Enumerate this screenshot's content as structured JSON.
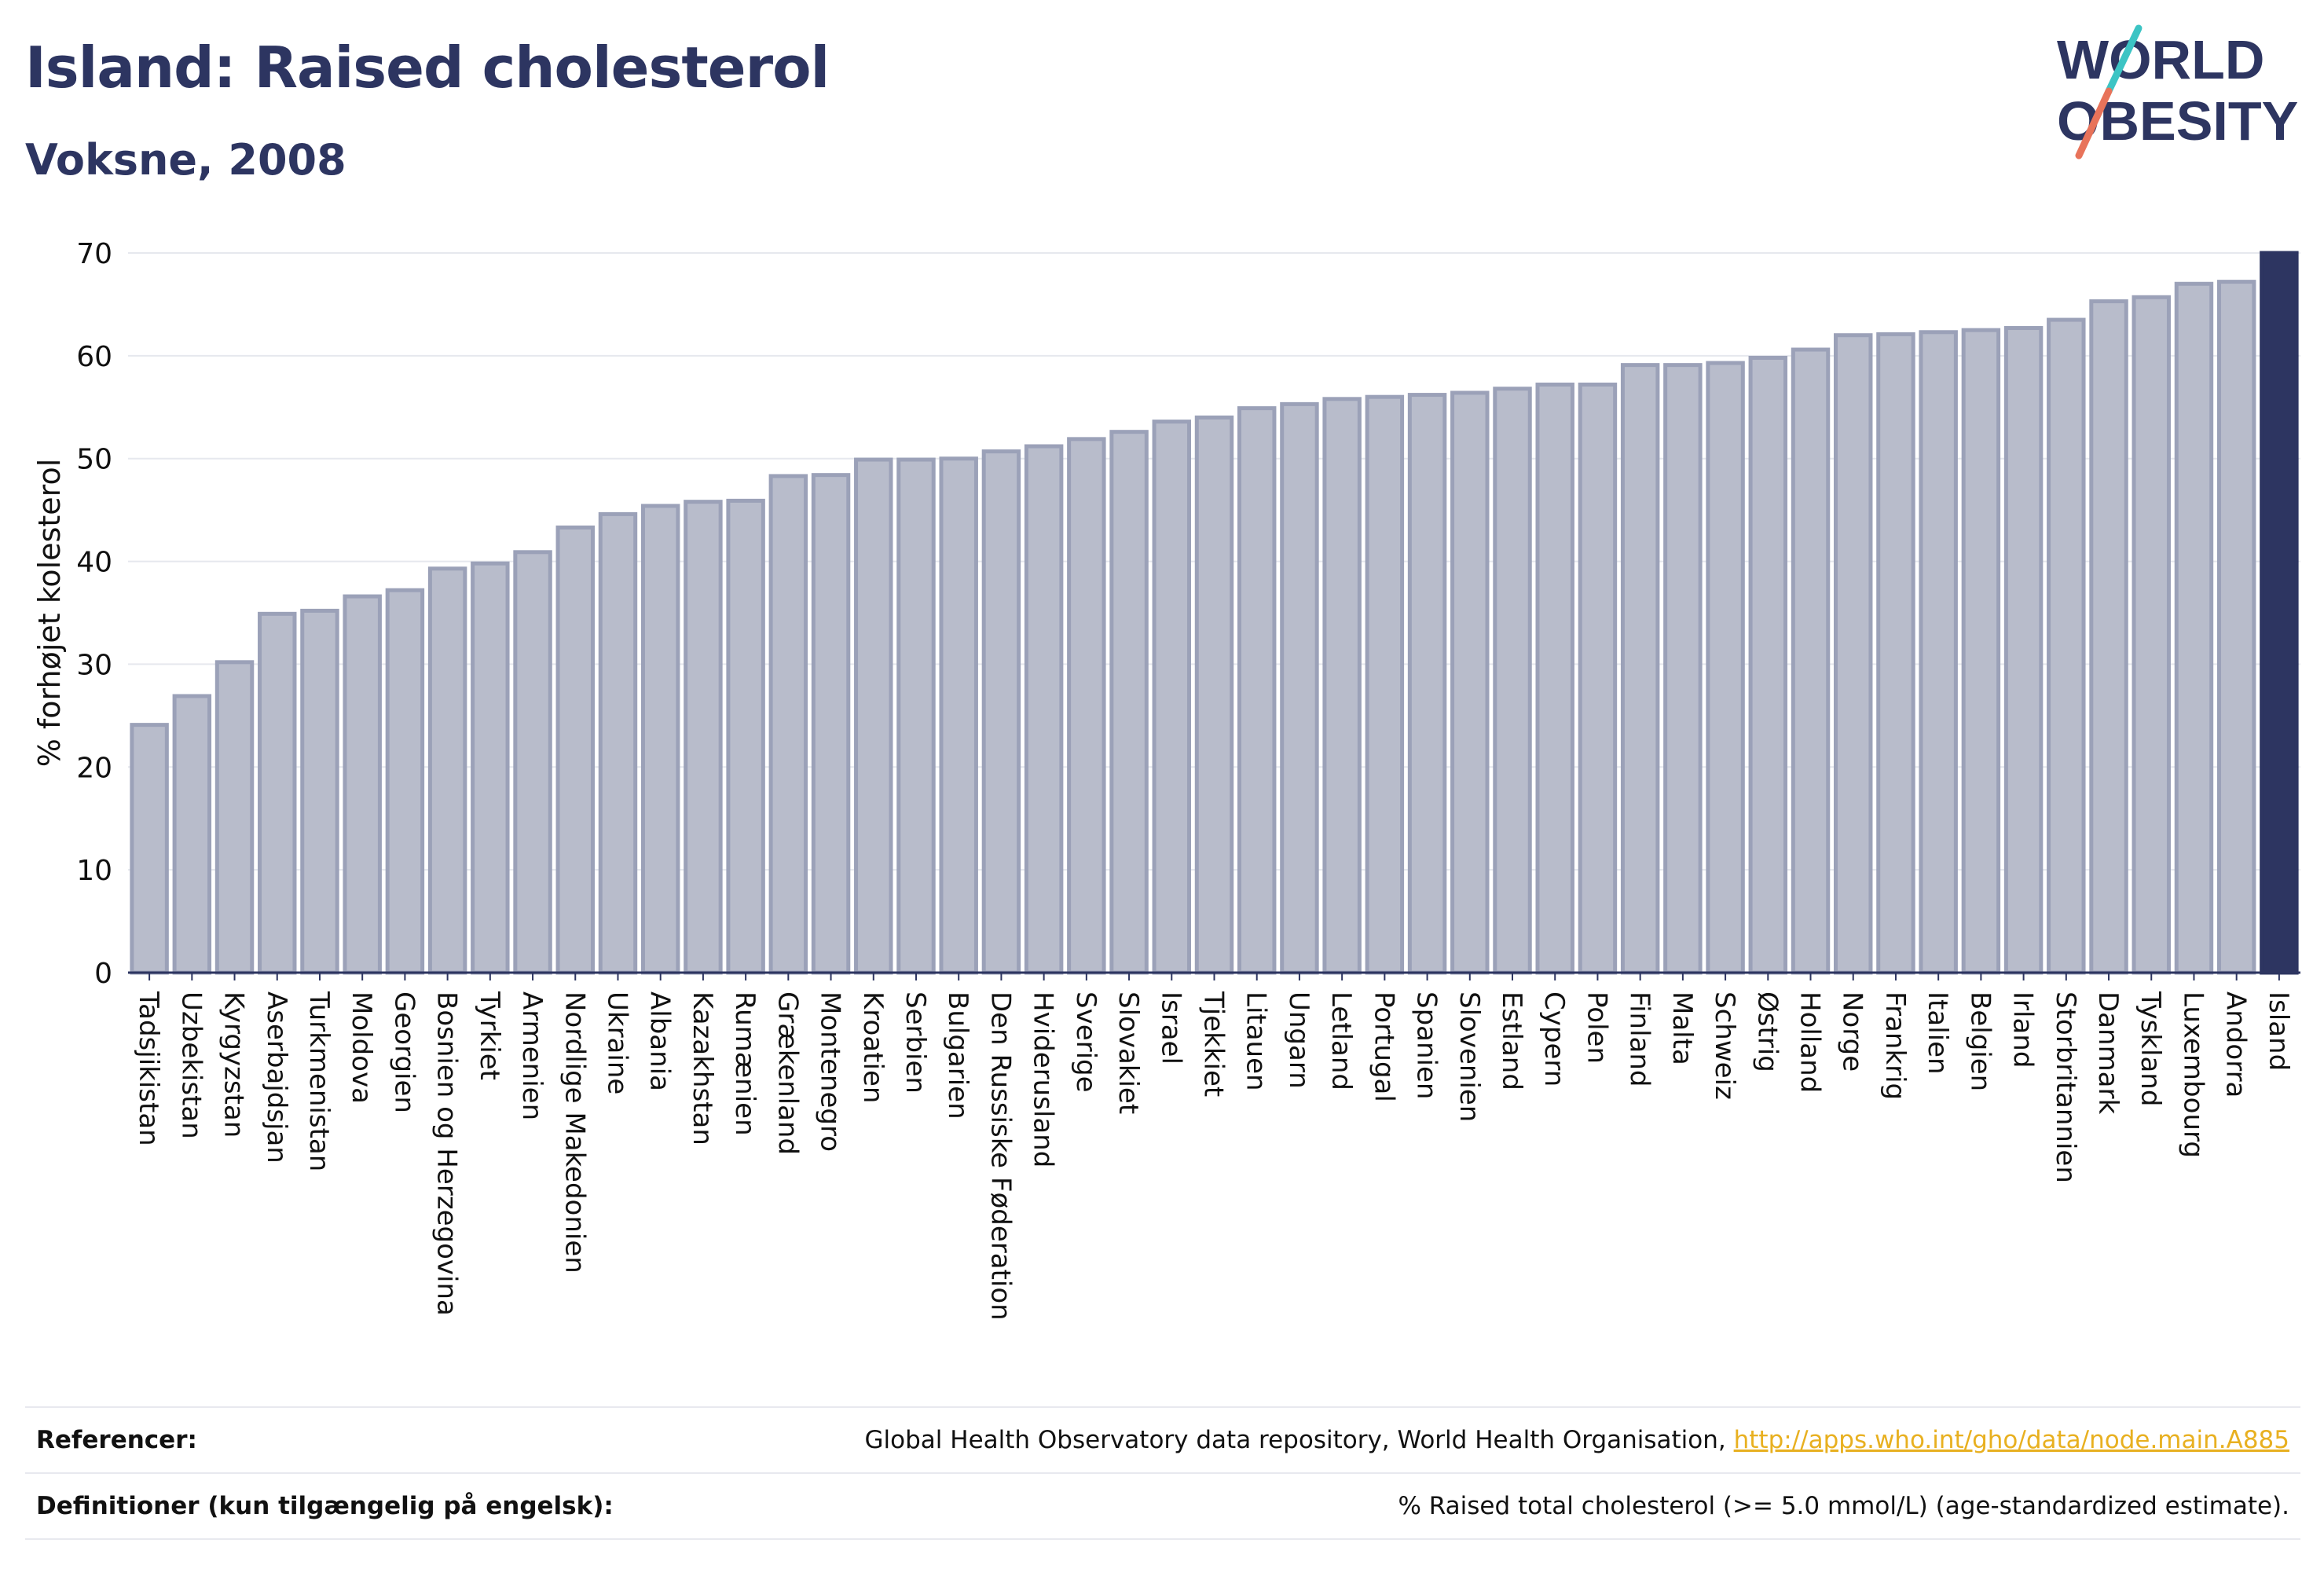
{
  "header": {
    "title": "Island: Raised cholesterol",
    "subtitle": "Voksne, 2008"
  },
  "logo": {
    "line1": "WORLD",
    "line2": "OBESITY",
    "colors": {
      "text": "#2d3561",
      "slash_top": "#3cc4c4",
      "slash_bottom": "#e8735a"
    }
  },
  "colors": {
    "bar_fill": "#b8bccb",
    "bar_stroke": "#9ba1b8",
    "highlight": "#2d3561",
    "grid": "#e6e8ee",
    "axis": "#2d3561",
    "text": "#111111"
  },
  "chart_data": {
    "type": "bar",
    "ylabel": "% forhøjet kolesterol",
    "xlabel": "",
    "ylim": [
      0,
      70
    ],
    "yticks": [
      0,
      10,
      20,
      30,
      40,
      50,
      60,
      70
    ],
    "grid": true,
    "highlight": "Island",
    "categories": [
      "Tadsjikistan",
      "Uzbekistan",
      "Kyrgyzstan",
      "Aserbajdsjan",
      "Turkmenistan",
      "Moldova",
      "Georgien",
      "Bosnien og Herzegovina",
      "Tyrkiet",
      "Armenien",
      "Nordlige Makedonien",
      "Ukraine",
      "Albania",
      "Kazakhstan",
      "Rumænien",
      "Grækenland",
      "Montenegro",
      "Kroatien",
      "Serbien",
      "Bulgarien",
      "Den Russiske Føderation",
      "Hviderusland",
      "Sverige",
      "Slovakiet",
      "Israel",
      "Tjekkiet",
      "Litauen",
      "Ungarn",
      "Letland",
      "Portugal",
      "Spanien",
      "Slovenien",
      "Estland",
      "Cypern",
      "Polen",
      "Finland",
      "Malta",
      "Schweiz",
      "Østrig",
      "Holland",
      "Norge",
      "Frankrig",
      "Italien",
      "Belgien",
      "Irland",
      "Storbritannien",
      "Danmark",
      "Tyskland",
      "Luxembourg",
      "Andorra",
      "Island"
    ],
    "values": [
      24.1,
      26.9,
      30.2,
      34.9,
      35.2,
      36.6,
      37.2,
      39.3,
      39.8,
      40.9,
      43.3,
      44.6,
      45.4,
      45.8,
      45.9,
      48.3,
      48.4,
      49.9,
      49.9,
      50.0,
      50.7,
      51.2,
      51.9,
      52.6,
      53.6,
      54.0,
      54.9,
      55.3,
      55.8,
      56.0,
      56.2,
      56.4,
      56.8,
      57.2,
      57.2,
      59.1,
      59.1,
      59.3,
      59.8,
      60.6,
      62.0,
      62.1,
      62.3,
      62.5,
      62.7,
      63.5,
      65.3,
      65.7,
      67.0,
      67.2,
      70.0
    ]
  },
  "references": {
    "ref_label": "Referencer:",
    "ref_text": "Global Health Observatory data repository, World Health Organisation, ",
    "ref_link": "http://apps.who.int/gho/data/node.main.A885",
    "def_label": "Definitioner (kun tilgængelig på engelsk):",
    "def_text": "% Raised total cholesterol (>= 5.0 mmol/L) (age-standardized estimate)."
  }
}
